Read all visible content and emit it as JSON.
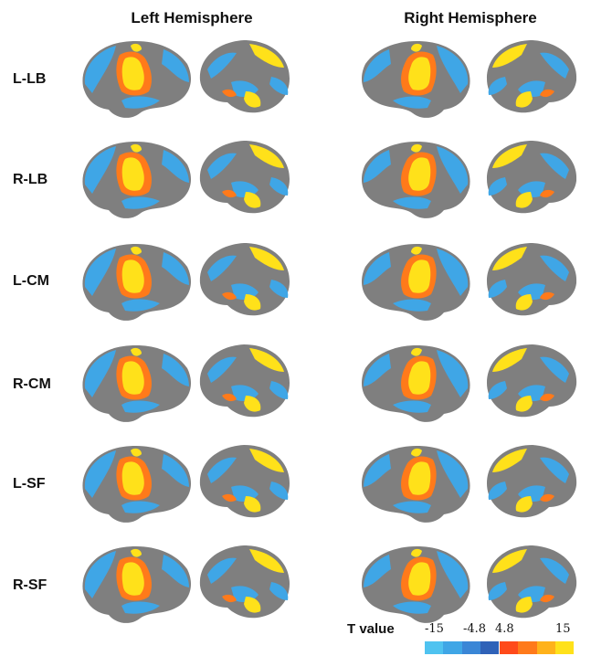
{
  "columns": {
    "left_hemisphere": "Left Hemisphere",
    "right_hemisphere": "Right Hemisphere"
  },
  "rows": [
    "L-LB",
    "R-LB",
    "L-CM",
    "R-CM",
    "L-SF",
    "R-SF"
  ],
  "legend": {
    "title": "T value",
    "ticks": [
      "-15",
      "-4.8",
      "4.8",
      "15"
    ],
    "negative_colors": [
      "#4fc3f0",
      "#3fa6e6",
      "#3a86d6",
      "#2f62b8"
    ],
    "positive_colors": [
      "#ff4a1a",
      "#ff7a1a",
      "#ffb21a",
      "#ffe11a"
    ]
  },
  "colors": {
    "cortex": "#7f7f7f",
    "negative_blue": "#3fa6e6",
    "positive_yellow": "#ffe11a",
    "positive_orange": "#ff7a1a"
  }
}
